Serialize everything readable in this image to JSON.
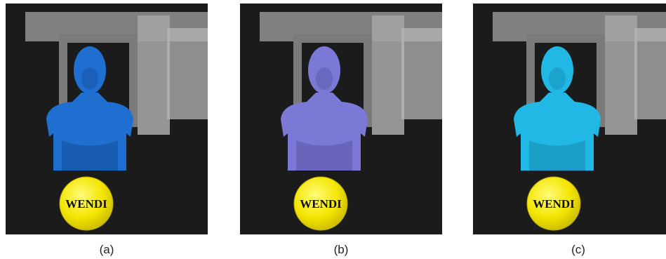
{
  "panels": [
    {
      "sphere_label": "WENDI",
      "caption": "(a)"
    },
    {
      "sphere_label": "WENDI",
      "caption": "(b)"
    },
    {
      "sphere_label": "WENDI",
      "caption": "(c)"
    }
  ]
}
